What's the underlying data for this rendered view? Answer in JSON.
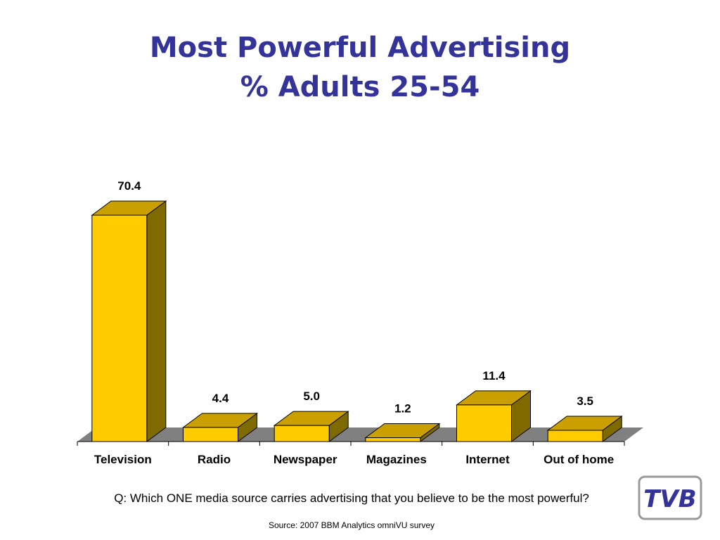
{
  "slide": {
    "title_line1": "Most Powerful Advertising",
    "title_line2": "% Adults 25-54",
    "question": "Q: Which ONE media source carries advertising that you believe to be the most powerful?",
    "source": "Source: 2007 BBM Analytics omniVU survey",
    "logo_text": "TVB"
  },
  "chart_data": {
    "type": "bar",
    "style": "3d",
    "title": "Most Powerful Advertising",
    "subtitle": "% Adults 25-54",
    "categories": [
      "Television",
      "Radio",
      "Newspaper",
      "Magazines",
      "Internet",
      "Out of home"
    ],
    "values": [
      70.4,
      4.4,
      5.0,
      1.2,
      11.4,
      3.5
    ],
    "labels": [
      "70.4",
      "4.4",
      "5.0",
      "1.2",
      "11.4",
      "3.5"
    ],
    "xlabel": "",
    "ylabel": "",
    "ylim": [
      0,
      72
    ],
    "grid": false,
    "legend": "none",
    "colors": {
      "front": "#FFCC00",
      "top": "#C9A000",
      "side": "#7F6A00",
      "floor": "#808080",
      "title": "#333399"
    }
  }
}
